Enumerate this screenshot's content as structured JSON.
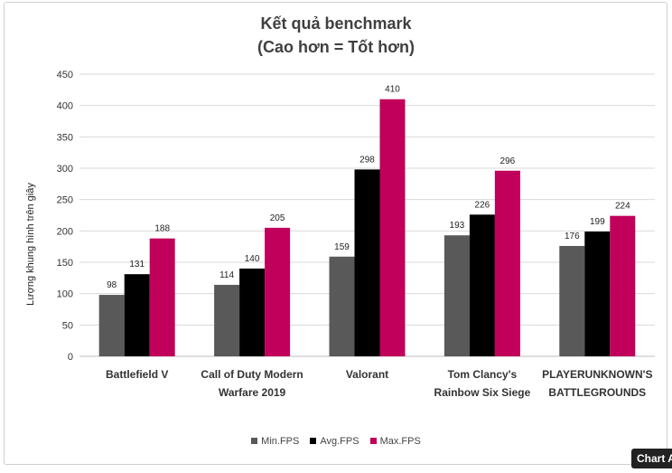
{
  "chart_data": {
    "type": "bar",
    "title_line1": "Kết quả benchmark",
    "title_line2": "(Cao hơn = Tốt hơn)",
    "xlabel": "",
    "ylabel": "Lượng khung hình trên giây",
    "ylim": [
      0,
      450
    ],
    "yticks": [
      0,
      50,
      100,
      150,
      200,
      250,
      300,
      350,
      400,
      450
    ],
    "grid": true,
    "legend_position": "bottom",
    "categories": [
      [
        "Battlefield V"
      ],
      [
        "Call of Duty  Modern",
        "Warfare 2019"
      ],
      [
        "Valorant"
      ],
      [
        "Tom Clancy's",
        "Rainbow Six Siege"
      ],
      [
        "PLAYERUNKNOWN'S",
        "BATTLEGROUNDS"
      ]
    ],
    "series": [
      {
        "name": "Min.FPS",
        "color": "#595959",
        "values": [
          98,
          114,
          159,
          193,
          176
        ]
      },
      {
        "name": "Avg.FPS",
        "color": "#000000",
        "values": [
          131,
          140,
          298,
          226,
          199
        ]
      },
      {
        "name": "Max.FPS",
        "color": "#c0005a",
        "values": [
          188,
          205,
          410,
          296,
          224
        ]
      }
    ]
  },
  "tooltip": "Chart A"
}
